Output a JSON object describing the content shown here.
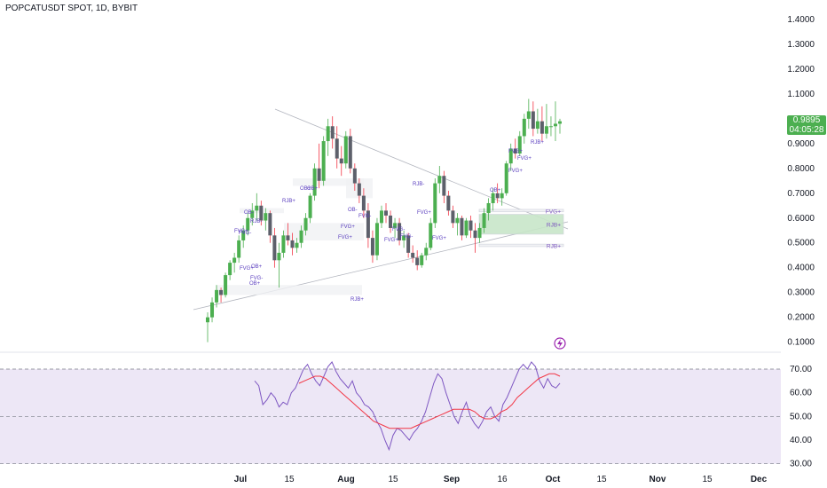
{
  "title": "POPCATUSDT SPOT, 1D, BYBIT",
  "price_tag": {
    "value": "0.9895",
    "countdown": "04:05:28",
    "color": "#4caf50"
  },
  "chart_data": [
    {
      "type": "candlestick",
      "ylim": [
        0.07,
        1.45
      ],
      "y_ticks": [
        "1.4000",
        "1.3000",
        "1.2000",
        "1.1000",
        "1.0000",
        "0.9000",
        "0.8000",
        "0.7000",
        "0.6000",
        "0.5000",
        "0.4000",
        "0.3000",
        "0.2000",
        "0.1000"
      ],
      "x_ticks": [
        "Jul",
        "15",
        "Aug",
        "15",
        "Sep",
        "16",
        "Oct",
        "15",
        "Nov",
        "15",
        "Dec"
      ],
      "up_color": "#4caf50",
      "down_color": "#5d606b",
      "candles": [
        {
          "o": 0.18,
          "h": 0.22,
          "l": 0.1,
          "c": 0.2
        },
        {
          "o": 0.2,
          "h": 0.28,
          "l": 0.18,
          "c": 0.26
        },
        {
          "o": 0.26,
          "h": 0.33,
          "l": 0.24,
          "c": 0.31
        },
        {
          "o": 0.31,
          "h": 0.32,
          "l": 0.26,
          "c": 0.29
        },
        {
          "o": 0.29,
          "h": 0.38,
          "l": 0.28,
          "c": 0.37
        },
        {
          "o": 0.37,
          "h": 0.43,
          "l": 0.35,
          "c": 0.42
        },
        {
          "o": 0.42,
          "h": 0.46,
          "l": 0.38,
          "c": 0.44
        },
        {
          "o": 0.44,
          "h": 0.53,
          "l": 0.42,
          "c": 0.51
        },
        {
          "o": 0.51,
          "h": 0.57,
          "l": 0.48,
          "c": 0.55
        },
        {
          "o": 0.55,
          "h": 0.62,
          "l": 0.53,
          "c": 0.6
        },
        {
          "o": 0.6,
          "h": 0.66,
          "l": 0.57,
          "c": 0.63
        },
        {
          "o": 0.63,
          "h": 0.7,
          "l": 0.59,
          "c": 0.65
        },
        {
          "o": 0.65,
          "h": 0.67,
          "l": 0.57,
          "c": 0.59
        },
        {
          "o": 0.59,
          "h": 0.64,
          "l": 0.55,
          "c": 0.62
        },
        {
          "o": 0.62,
          "h": 0.63,
          "l": 0.5,
          "c": 0.53
        },
        {
          "o": 0.53,
          "h": 0.56,
          "l": 0.4,
          "c": 0.43
        },
        {
          "o": 0.43,
          "h": 0.5,
          "l": 0.32,
          "c": 0.46
        },
        {
          "o": 0.46,
          "h": 0.55,
          "l": 0.44,
          "c": 0.53
        },
        {
          "o": 0.53,
          "h": 0.58,
          "l": 0.49,
          "c": 0.51
        },
        {
          "o": 0.51,
          "h": 0.54,
          "l": 0.45,
          "c": 0.48
        },
        {
          "o": 0.48,
          "h": 0.52,
          "l": 0.46,
          "c": 0.5
        },
        {
          "o": 0.5,
          "h": 0.57,
          "l": 0.48,
          "c": 0.55
        },
        {
          "o": 0.55,
          "h": 0.62,
          "l": 0.53,
          "c": 0.6
        },
        {
          "o": 0.6,
          "h": 0.7,
          "l": 0.58,
          "c": 0.69
        },
        {
          "o": 0.69,
          "h": 0.82,
          "l": 0.67,
          "c": 0.8
        },
        {
          "o": 0.8,
          "h": 0.9,
          "l": 0.72,
          "c": 0.75
        },
        {
          "o": 0.75,
          "h": 0.93,
          "l": 0.73,
          "c": 0.91
        },
        {
          "o": 0.91,
          "h": 1.0,
          "l": 0.85,
          "c": 0.97
        },
        {
          "o": 0.97,
          "h": 1.01,
          "l": 0.88,
          "c": 0.92
        },
        {
          "o": 0.92,
          "h": 0.97,
          "l": 0.8,
          "c": 0.84
        },
        {
          "o": 0.84,
          "h": 0.89,
          "l": 0.77,
          "c": 0.82
        },
        {
          "o": 0.82,
          "h": 0.95,
          "l": 0.8,
          "c": 0.93
        },
        {
          "o": 0.93,
          "h": 0.96,
          "l": 0.78,
          "c": 0.8
        },
        {
          "o": 0.8,
          "h": 0.82,
          "l": 0.71,
          "c": 0.74
        },
        {
          "o": 0.74,
          "h": 0.76,
          "l": 0.66,
          "c": 0.69
        },
        {
          "o": 0.69,
          "h": 0.72,
          "l": 0.6,
          "c": 0.63
        },
        {
          "o": 0.63,
          "h": 0.66,
          "l": 0.48,
          "c": 0.52
        },
        {
          "o": 0.52,
          "h": 0.55,
          "l": 0.42,
          "c": 0.45
        },
        {
          "o": 0.45,
          "h": 0.6,
          "l": 0.43,
          "c": 0.58
        },
        {
          "o": 0.58,
          "h": 0.65,
          "l": 0.56,
          "c": 0.63
        },
        {
          "o": 0.63,
          "h": 0.66,
          "l": 0.58,
          "c": 0.61
        },
        {
          "o": 0.61,
          "h": 0.63,
          "l": 0.54,
          "c": 0.56
        },
        {
          "o": 0.56,
          "h": 0.6,
          "l": 0.52,
          "c": 0.58
        },
        {
          "o": 0.58,
          "h": 0.6,
          "l": 0.49,
          "c": 0.51
        },
        {
          "o": 0.51,
          "h": 0.55,
          "l": 0.48,
          "c": 0.53
        },
        {
          "o": 0.53,
          "h": 0.54,
          "l": 0.44,
          "c": 0.46
        },
        {
          "o": 0.46,
          "h": 0.49,
          "l": 0.42,
          "c": 0.44
        },
        {
          "o": 0.44,
          "h": 0.47,
          "l": 0.39,
          "c": 0.41
        },
        {
          "o": 0.41,
          "h": 0.46,
          "l": 0.4,
          "c": 0.45
        },
        {
          "o": 0.45,
          "h": 0.5,
          "l": 0.43,
          "c": 0.48
        },
        {
          "o": 0.48,
          "h": 0.6,
          "l": 0.47,
          "c": 0.58
        },
        {
          "o": 0.58,
          "h": 0.76,
          "l": 0.56,
          "c": 0.74
        },
        {
          "o": 0.74,
          "h": 0.81,
          "l": 0.7,
          "c": 0.77
        },
        {
          "o": 0.77,
          "h": 0.79,
          "l": 0.66,
          "c": 0.69
        },
        {
          "o": 0.69,
          "h": 0.71,
          "l": 0.61,
          "c": 0.63
        },
        {
          "o": 0.63,
          "h": 0.65,
          "l": 0.56,
          "c": 0.58
        },
        {
          "o": 0.58,
          "h": 0.62,
          "l": 0.53,
          "c": 0.6
        },
        {
          "o": 0.6,
          "h": 0.61,
          "l": 0.51,
          "c": 0.53
        },
        {
          "o": 0.53,
          "h": 0.6,
          "l": 0.52,
          "c": 0.59
        },
        {
          "o": 0.59,
          "h": 0.61,
          "l": 0.52,
          "c": 0.55
        },
        {
          "o": 0.55,
          "h": 0.58,
          "l": 0.46,
          "c": 0.52
        },
        {
          "o": 0.52,
          "h": 0.58,
          "l": 0.5,
          "c": 0.56
        },
        {
          "o": 0.56,
          "h": 0.64,
          "l": 0.54,
          "c": 0.62
        },
        {
          "o": 0.62,
          "h": 0.68,
          "l": 0.59,
          "c": 0.66
        },
        {
          "o": 0.66,
          "h": 0.72,
          "l": 0.63,
          "c": 0.7
        },
        {
          "o": 0.7,
          "h": 0.74,
          "l": 0.66,
          "c": 0.68
        },
        {
          "o": 0.68,
          "h": 0.72,
          "l": 0.65,
          "c": 0.7
        },
        {
          "o": 0.7,
          "h": 0.83,
          "l": 0.69,
          "c": 0.82
        },
        {
          "o": 0.82,
          "h": 0.9,
          "l": 0.79,
          "c": 0.88
        },
        {
          "o": 0.88,
          "h": 0.92,
          "l": 0.84,
          "c": 0.86
        },
        {
          "o": 0.86,
          "h": 0.95,
          "l": 0.85,
          "c": 0.93
        },
        {
          "o": 0.93,
          "h": 1.02,
          "l": 0.9,
          "c": 1.0
        },
        {
          "o": 1.0,
          "h": 1.08,
          "l": 0.96,
          "c": 1.03
        },
        {
          "o": 1.03,
          "h": 1.07,
          "l": 0.93,
          "c": 0.96
        },
        {
          "o": 0.96,
          "h": 1.04,
          "l": 0.94,
          "c": 0.99
        },
        {
          "o": 0.99,
          "h": 1.05,
          "l": 0.91,
          "c": 0.94
        },
        {
          "o": 0.94,
          "h": 1.06,
          "l": 0.92,
          "c": 0.97
        },
        {
          "o": 0.97,
          "h": 1.01,
          "l": 0.93,
          "c": 0.97
        },
        {
          "o": 0.97,
          "h": 1.07,
          "l": 0.91,
          "c": 0.98
        },
        {
          "o": 0.98,
          "h": 1.0,
          "l": 0.94,
          "c": 0.99
        }
      ],
      "zones": [
        {
          "label": "FVG+",
          "top": 0.635,
          "bottom": 0.625,
          "right_label": true
        },
        {
          "label": "RJB+",
          "top": 0.615,
          "bottom": 0.535,
          "right_label": true,
          "fill": "#c8e6c9"
        },
        {
          "label": "RJB+",
          "top": 0.495,
          "bottom": 0.485,
          "right_label": true
        }
      ],
      "labels": [
        "FVG+",
        "RJB+",
        "RJB-",
        "FVG-",
        "OB-",
        "OB+",
        "FVG+",
        "FVG-",
        "RJB+",
        "FVG+",
        "OB+",
        "RJB-",
        "FVG+",
        "FVG-",
        "OB+",
        "FVG+",
        "FVG+",
        "FVG-",
        "FVG+",
        "OB+",
        "FVG+",
        "FVG-",
        "RJB+",
        "FVG+",
        "FVG+",
        "OB-",
        "OB+"
      ]
    },
    {
      "type": "line",
      "ylim": [
        28,
        76
      ],
      "y_ticks": [
        "70.00",
        "60.00",
        "50.00",
        "40.00",
        "30.00"
      ],
      "bands": {
        "upper": 70,
        "middle": 50,
        "lower": 30,
        "fill": "#ede7f6"
      },
      "series": [
        {
          "color": "#7e57c2",
          "values": [
            65,
            63,
            55,
            57,
            60,
            58,
            54,
            56,
            55,
            60,
            62,
            66,
            70,
            72,
            68,
            65,
            63,
            67,
            71,
            73,
            69,
            66,
            64,
            62,
            65,
            60,
            58,
            55,
            54,
            52,
            48,
            45,
            40,
            36,
            42,
            45,
            44,
            42,
            40,
            43,
            45,
            48,
            52,
            58,
            64,
            68,
            66,
            60,
            55,
            50,
            47,
            52,
            56,
            50,
            47,
            45,
            48,
            52,
            54,
            50,
            48,
            55,
            58,
            62,
            66,
            70,
            72,
            70,
            73,
            71,
            65,
            62,
            66,
            63,
            62,
            64
          ]
        },
        {
          "color": "#f23645",
          "values": [
            64,
            65,
            66,
            67,
            67,
            66,
            64,
            62,
            60,
            58,
            56,
            54,
            52,
            50,
            48,
            47,
            46,
            45,
            45,
            45,
            45,
            45,
            46,
            47,
            48,
            49,
            50,
            51,
            52,
            53,
            53,
            53,
            53,
            52,
            50,
            49,
            49,
            50,
            52,
            53,
            55,
            58,
            60,
            62,
            64,
            66,
            67,
            68,
            68,
            67
          ]
        }
      ]
    }
  ]
}
